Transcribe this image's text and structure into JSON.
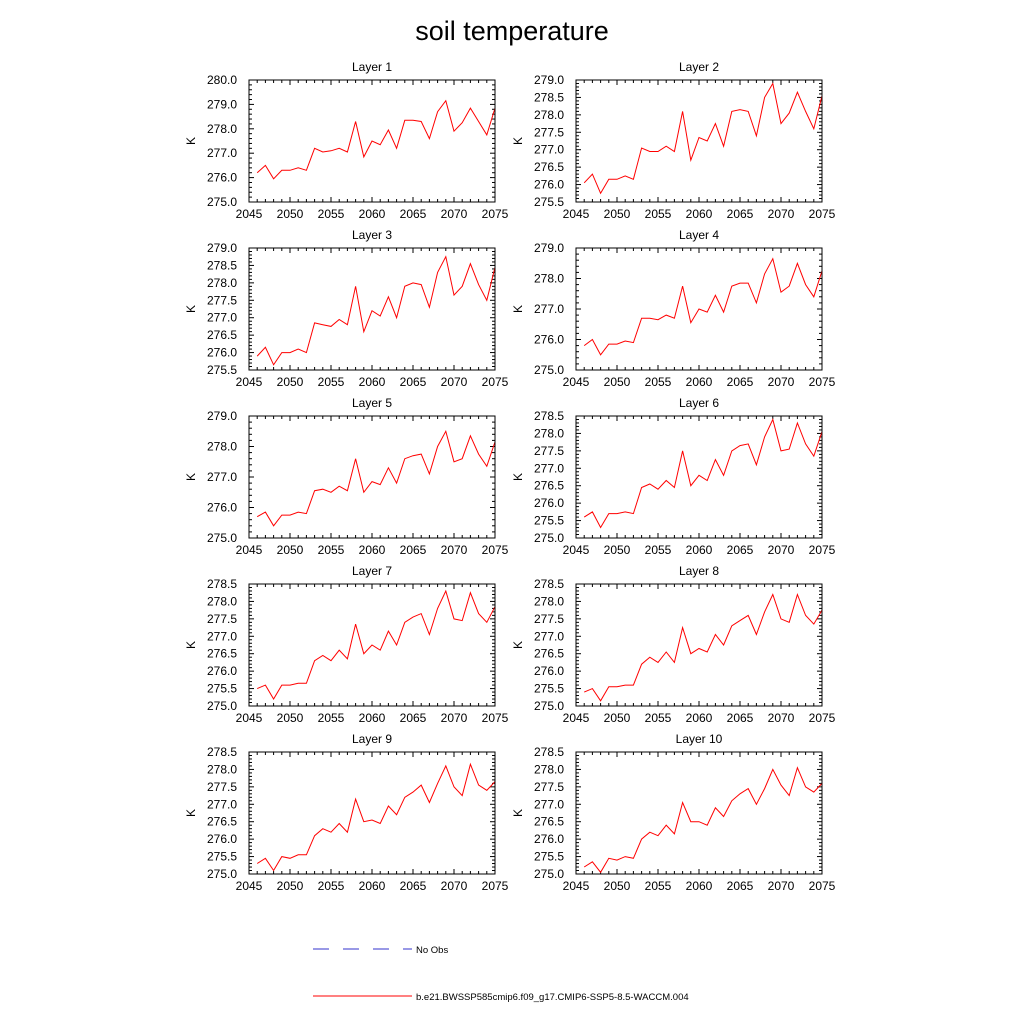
{
  "figure_title": "soil temperature",
  "legend": {
    "obs_label": "No Obs",
    "obs_color": "#3333cc",
    "model_label": "b.e21.BWSSP585cmip6.f09_g17.CMIP6-SSP5-8.5-WACCM.004",
    "model_color": "#ff0000"
  },
  "colors": {
    "line": "#ff0000",
    "axis": "#000000"
  },
  "chart_data": [
    {
      "type": "line",
      "title": "Layer 1",
      "xlabel": "",
      "ylabel": "K",
      "xlim": [
        2045,
        2075
      ],
      "ylim": [
        275.0,
        280.0
      ],
      "xticks": [
        2045,
        2050,
        2055,
        2060,
        2065,
        2070,
        2075
      ],
      "xtick_labels": [
        "2045",
        "2050",
        "2055",
        "2060",
        "2065",
        "2070",
        "2075"
      ],
      "yticks": [
        275.0,
        276.0,
        277.0,
        278.0,
        279.0,
        280.0
      ],
      "ytick_labels": [
        "275.0",
        "276.0",
        "277.0",
        "278.0",
        "279.0",
        "280.0"
      ],
      "x": [
        2046,
        2047,
        2048,
        2049,
        2050,
        2051,
        2052,
        2053,
        2054,
        2055,
        2056,
        2057,
        2058,
        2059,
        2060,
        2061,
        2062,
        2063,
        2064,
        2065,
        2066,
        2067,
        2068,
        2069,
        2070,
        2071,
        2072,
        2073,
        2074,
        2075
      ],
      "series": [
        {
          "name": "b.e21.BWSSP585cmip6.f09_g17.CMIP6-SSP5-8.5-WACCM.004",
          "values": [
            276.2,
            276.5,
            275.95,
            276.3,
            276.3,
            276.4,
            276.3,
            277.2,
            277.05,
            277.1,
            277.2,
            277.05,
            278.3,
            276.85,
            277.5,
            277.35,
            277.95,
            277.2,
            278.35,
            278.35,
            278.3,
            277.6,
            278.7,
            279.15,
            277.9,
            278.25,
            278.85,
            278.3,
            277.75,
            278.85
          ]
        }
      ]
    },
    {
      "type": "line",
      "title": "Layer 2",
      "xlabel": "",
      "ylabel": "K",
      "xlim": [
        2045,
        2075
      ],
      "ylim": [
        275.5,
        279.0
      ],
      "xticks": [
        2045,
        2050,
        2055,
        2060,
        2065,
        2070,
        2075
      ],
      "xtick_labels": [
        "2045",
        "2050",
        "2055",
        "2060",
        "2065",
        "2070",
        "2075"
      ],
      "yticks": [
        275.5,
        276.0,
        276.5,
        277.0,
        277.5,
        278.0,
        278.5,
        279.0
      ],
      "ytick_labels": [
        "275.5",
        "276.0",
        "276.5",
        "277.0",
        "277.5",
        "278.0",
        "278.5",
        "279.0"
      ],
      "x": [
        2046,
        2047,
        2048,
        2049,
        2050,
        2051,
        2052,
        2053,
        2054,
        2055,
        2056,
        2057,
        2058,
        2059,
        2060,
        2061,
        2062,
        2063,
        2064,
        2065,
        2066,
        2067,
        2068,
        2069,
        2070,
        2071,
        2072,
        2073,
        2074,
        2075
      ],
      "series": [
        {
          "name": "b.e21.BWSSP585cmip6.f09_g17.CMIP6-SSP5-8.5-WACCM.004",
          "values": [
            276.05,
            276.3,
            275.75,
            276.15,
            276.15,
            276.25,
            276.15,
            277.05,
            276.95,
            276.95,
            277.1,
            276.95,
            278.1,
            276.7,
            277.35,
            277.25,
            277.75,
            277.1,
            278.1,
            278.15,
            278.1,
            277.4,
            278.5,
            278.9,
            277.75,
            278.05,
            278.65,
            278.1,
            277.6,
            278.55
          ]
        }
      ]
    },
    {
      "type": "line",
      "title": "Layer 3",
      "xlabel": "",
      "ylabel": "K",
      "xlim": [
        2045,
        2075
      ],
      "ylim": [
        275.5,
        279.0
      ],
      "xticks": [
        2045,
        2050,
        2055,
        2060,
        2065,
        2070,
        2075
      ],
      "xtick_labels": [
        "2045",
        "2050",
        "2055",
        "2060",
        "2065",
        "2070",
        "2075"
      ],
      "yticks": [
        275.5,
        276.0,
        276.5,
        277.0,
        277.5,
        278.0,
        278.5,
        279.0
      ],
      "ytick_labels": [
        "275.5",
        "276.0",
        "276.5",
        "277.0",
        "277.5",
        "278.0",
        "278.5",
        "279.0"
      ],
      "x": [
        2046,
        2047,
        2048,
        2049,
        2050,
        2051,
        2052,
        2053,
        2054,
        2055,
        2056,
        2057,
        2058,
        2059,
        2060,
        2061,
        2062,
        2063,
        2064,
        2065,
        2066,
        2067,
        2068,
        2069,
        2070,
        2071,
        2072,
        2073,
        2074,
        2075
      ],
      "series": [
        {
          "name": "b.e21.BWSSP585cmip6.f09_g17.CMIP6-SSP5-8.5-WACCM.004",
          "values": [
            275.9,
            276.15,
            275.65,
            276.0,
            276.0,
            276.1,
            276.0,
            276.85,
            276.8,
            276.75,
            276.95,
            276.8,
            277.9,
            276.6,
            277.2,
            277.05,
            277.6,
            277.0,
            277.9,
            278.0,
            277.95,
            277.3,
            278.3,
            278.75,
            277.65,
            277.9,
            278.55,
            277.95,
            277.5,
            278.45
          ]
        }
      ]
    },
    {
      "type": "line",
      "title": "Layer 4",
      "xlabel": "",
      "ylabel": "K",
      "xlim": [
        2045,
        2075
      ],
      "ylim": [
        275.0,
        279.0
      ],
      "xticks": [
        2045,
        2050,
        2055,
        2060,
        2065,
        2070,
        2075
      ],
      "xtick_labels": [
        "2045",
        "2050",
        "2055",
        "2060",
        "2065",
        "2070",
        "2075"
      ],
      "yticks": [
        275.0,
        276.0,
        277.0,
        278.0,
        279.0
      ],
      "ytick_labels": [
        "275.0",
        "276.0",
        "277.0",
        "278.0",
        "279.0"
      ],
      "x": [
        2046,
        2047,
        2048,
        2049,
        2050,
        2051,
        2052,
        2053,
        2054,
        2055,
        2056,
        2057,
        2058,
        2059,
        2060,
        2061,
        2062,
        2063,
        2064,
        2065,
        2066,
        2067,
        2068,
        2069,
        2070,
        2071,
        2072,
        2073,
        2074,
        2075
      ],
      "series": [
        {
          "name": "b.e21.BWSSP585cmip6.f09_g17.CMIP6-SSP5-8.5-WACCM.004",
          "values": [
            275.8,
            276.0,
            275.5,
            275.85,
            275.85,
            275.95,
            275.9,
            276.7,
            276.7,
            276.65,
            276.8,
            276.7,
            277.75,
            276.55,
            277.0,
            276.9,
            277.45,
            276.9,
            277.75,
            277.85,
            277.85,
            277.2,
            278.15,
            278.65,
            277.55,
            277.75,
            278.5,
            277.8,
            277.4,
            278.25
          ]
        }
      ]
    },
    {
      "type": "line",
      "title": "Layer 5",
      "xlabel": "",
      "ylabel": "K",
      "xlim": [
        2045,
        2075
      ],
      "ylim": [
        275.0,
        279.0
      ],
      "xticks": [
        2045,
        2050,
        2055,
        2060,
        2065,
        2070,
        2075
      ],
      "xtick_labels": [
        "2045",
        "2050",
        "2055",
        "2060",
        "2065",
        "2070",
        "2075"
      ],
      "yticks": [
        275.0,
        276.0,
        277.0,
        278.0,
        279.0
      ],
      "ytick_labels": [
        "275.0",
        "276.0",
        "277.0",
        "278.0",
        "279.0"
      ],
      "x": [
        2046,
        2047,
        2048,
        2049,
        2050,
        2051,
        2052,
        2053,
        2054,
        2055,
        2056,
        2057,
        2058,
        2059,
        2060,
        2061,
        2062,
        2063,
        2064,
        2065,
        2066,
        2067,
        2068,
        2069,
        2070,
        2071,
        2072,
        2073,
        2074,
        2075
      ],
      "series": [
        {
          "name": "b.e21.BWSSP585cmip6.f09_g17.CMIP6-SSP5-8.5-WACCM.004",
          "values": [
            275.7,
            275.85,
            275.4,
            275.75,
            275.75,
            275.85,
            275.8,
            276.55,
            276.6,
            276.5,
            276.7,
            276.55,
            277.6,
            276.5,
            276.85,
            276.75,
            277.3,
            276.8,
            277.6,
            277.7,
            277.75,
            277.1,
            278.0,
            278.5,
            277.5,
            277.6,
            278.35,
            277.75,
            277.35,
            278.15
          ]
        }
      ]
    },
    {
      "type": "line",
      "title": "Layer 6",
      "xlabel": "",
      "ylabel": "K",
      "xlim": [
        2045,
        2075
      ],
      "ylim": [
        275.0,
        278.5
      ],
      "xticks": [
        2045,
        2050,
        2055,
        2060,
        2065,
        2070,
        2075
      ],
      "xtick_labels": [
        "2045",
        "2050",
        "2055",
        "2060",
        "2065",
        "2070",
        "2075"
      ],
      "yticks": [
        275.0,
        275.5,
        276.0,
        276.5,
        277.0,
        277.5,
        278.0,
        278.5
      ],
      "ytick_labels": [
        "275.0",
        "275.5",
        "276.0",
        "276.5",
        "277.0",
        "277.5",
        "278.0",
        "278.5"
      ],
      "x": [
        2046,
        2047,
        2048,
        2049,
        2050,
        2051,
        2052,
        2053,
        2054,
        2055,
        2056,
        2057,
        2058,
        2059,
        2060,
        2061,
        2062,
        2063,
        2064,
        2065,
        2066,
        2067,
        2068,
        2069,
        2070,
        2071,
        2072,
        2073,
        2074,
        2075
      ],
      "series": [
        {
          "name": "b.e21.BWSSP585cmip6.f09_g17.CMIP6-SSP5-8.5-WACCM.004",
          "values": [
            275.6,
            275.75,
            275.3,
            275.7,
            275.7,
            275.75,
            275.7,
            276.45,
            276.55,
            276.4,
            276.65,
            276.45,
            277.5,
            276.5,
            276.8,
            276.65,
            277.25,
            276.8,
            277.5,
            277.65,
            277.7,
            277.1,
            277.9,
            278.4,
            277.5,
            277.55,
            278.3,
            277.7,
            277.35,
            278.05
          ]
        }
      ]
    },
    {
      "type": "line",
      "title": "Layer 7",
      "xlabel": "",
      "ylabel": "K",
      "xlim": [
        2045,
        2075
      ],
      "ylim": [
        275.0,
        278.5
      ],
      "xticks": [
        2045,
        2050,
        2055,
        2060,
        2065,
        2070,
        2075
      ],
      "xtick_labels": [
        "2045",
        "2050",
        "2055",
        "2060",
        "2065",
        "2070",
        "2075"
      ],
      "yticks": [
        275.0,
        275.5,
        276.0,
        276.5,
        277.0,
        277.5,
        278.0,
        278.5
      ],
      "ytick_labels": [
        "275.0",
        "275.5",
        "276.0",
        "276.5",
        "277.0",
        "277.5",
        "278.0",
        "278.5"
      ],
      "x": [
        2046,
        2047,
        2048,
        2049,
        2050,
        2051,
        2052,
        2053,
        2054,
        2055,
        2056,
        2057,
        2058,
        2059,
        2060,
        2061,
        2062,
        2063,
        2064,
        2065,
        2066,
        2067,
        2068,
        2069,
        2070,
        2071,
        2072,
        2073,
        2074,
        2075
      ],
      "series": [
        {
          "name": "b.e21.BWSSP585cmip6.f09_g17.CMIP6-SSP5-8.5-WACCM.004",
          "values": [
            275.5,
            275.6,
            275.2,
            275.6,
            275.6,
            275.65,
            275.65,
            276.3,
            276.45,
            276.3,
            276.6,
            276.35,
            277.35,
            276.5,
            276.75,
            276.6,
            277.15,
            276.75,
            277.4,
            277.55,
            277.65,
            277.05,
            277.8,
            278.3,
            277.5,
            277.45,
            278.25,
            277.65,
            277.4,
            277.85
          ]
        }
      ]
    },
    {
      "type": "line",
      "title": "Layer 8",
      "xlabel": "",
      "ylabel": "K",
      "xlim": [
        2045,
        2075
      ],
      "ylim": [
        275.0,
        278.5
      ],
      "xticks": [
        2045,
        2050,
        2055,
        2060,
        2065,
        2070,
        2075
      ],
      "xtick_labels": [
        "2045",
        "2050",
        "2055",
        "2060",
        "2065",
        "2070",
        "2075"
      ],
      "yticks": [
        275.0,
        275.5,
        276.0,
        276.5,
        277.0,
        277.5,
        278.0,
        278.5
      ],
      "ytick_labels": [
        "275.0",
        "275.5",
        "276.0",
        "276.5",
        "277.0",
        "277.5",
        "278.0",
        "278.5"
      ],
      "x": [
        2046,
        2047,
        2048,
        2049,
        2050,
        2051,
        2052,
        2053,
        2054,
        2055,
        2056,
        2057,
        2058,
        2059,
        2060,
        2061,
        2062,
        2063,
        2064,
        2065,
        2066,
        2067,
        2068,
        2069,
        2070,
        2071,
        2072,
        2073,
        2074,
        2075
      ],
      "series": [
        {
          "name": "b.e21.BWSSP585cmip6.f09_g17.CMIP6-SSP5-8.5-WACCM.004",
          "values": [
            275.4,
            275.5,
            275.15,
            275.55,
            275.55,
            275.6,
            275.6,
            276.2,
            276.4,
            276.25,
            276.55,
            276.25,
            277.25,
            276.5,
            276.65,
            276.55,
            277.05,
            276.75,
            277.3,
            277.45,
            277.6,
            277.05,
            277.7,
            278.2,
            277.5,
            277.4,
            278.2,
            277.6,
            277.35,
            277.75
          ]
        }
      ]
    },
    {
      "type": "line",
      "title": "Layer 9",
      "xlabel": "",
      "ylabel": "K",
      "xlim": [
        2045,
        2075
      ],
      "ylim": [
        275.0,
        278.5
      ],
      "xticks": [
        2045,
        2050,
        2055,
        2060,
        2065,
        2070,
        2075
      ],
      "xtick_labels": [
        "2045",
        "2050",
        "2055",
        "2060",
        "2065",
        "2070",
        "2075"
      ],
      "yticks": [
        275.0,
        275.5,
        276.0,
        276.5,
        277.0,
        277.5,
        278.0,
        278.5
      ],
      "ytick_labels": [
        "275.0",
        "275.5",
        "276.0",
        "276.5",
        "277.0",
        "277.5",
        "278.0",
        "278.5"
      ],
      "x": [
        2046,
        2047,
        2048,
        2049,
        2050,
        2051,
        2052,
        2053,
        2054,
        2055,
        2056,
        2057,
        2058,
        2059,
        2060,
        2061,
        2062,
        2063,
        2064,
        2065,
        2066,
        2067,
        2068,
        2069,
        2070,
        2071,
        2072,
        2073,
        2074,
        2075
      ],
      "series": [
        {
          "name": "b.e21.BWSSP585cmip6.f09_g17.CMIP6-SSP5-8.5-WACCM.004",
          "values": [
            275.3,
            275.45,
            275.1,
            275.5,
            275.45,
            275.55,
            275.55,
            276.1,
            276.3,
            276.2,
            276.45,
            276.2,
            277.15,
            276.5,
            276.55,
            276.45,
            276.95,
            276.7,
            277.2,
            277.35,
            277.55,
            277.05,
            277.6,
            278.1,
            277.5,
            277.25,
            278.15,
            277.55,
            277.4,
            277.65
          ]
        }
      ]
    },
    {
      "type": "line",
      "title": "Layer 10",
      "xlabel": "",
      "ylabel": "K",
      "xlim": [
        2045,
        2075
      ],
      "ylim": [
        275.0,
        278.5
      ],
      "xticks": [
        2045,
        2050,
        2055,
        2060,
        2065,
        2070,
        2075
      ],
      "xtick_labels": [
        "2045",
        "2050",
        "2055",
        "2060",
        "2065",
        "2070",
        "2075"
      ],
      "yticks": [
        275.0,
        275.5,
        276.0,
        276.5,
        277.0,
        277.5,
        278.0,
        278.5
      ],
      "ytick_labels": [
        "275.0",
        "275.5",
        "276.0",
        "276.5",
        "277.0",
        "277.5",
        "278.0",
        "278.5"
      ],
      "x": [
        2046,
        2047,
        2048,
        2049,
        2050,
        2051,
        2052,
        2053,
        2054,
        2055,
        2056,
        2057,
        2058,
        2059,
        2060,
        2061,
        2062,
        2063,
        2064,
        2065,
        2066,
        2067,
        2068,
        2069,
        2070,
        2071,
        2072,
        2073,
        2074,
        2075
      ],
      "series": [
        {
          "name": "b.e21.BWSSP585cmip6.f09_g17.CMIP6-SSP5-8.5-WACCM.004",
          "values": [
            275.2,
            275.35,
            275.05,
            275.45,
            275.4,
            275.5,
            275.45,
            276.0,
            276.2,
            276.1,
            276.4,
            276.15,
            277.05,
            276.5,
            276.5,
            276.4,
            276.9,
            276.65,
            277.1,
            277.3,
            277.45,
            277.0,
            277.45,
            278.0,
            277.55,
            277.25,
            278.05,
            277.5,
            277.35,
            277.6
          ]
        }
      ]
    }
  ]
}
